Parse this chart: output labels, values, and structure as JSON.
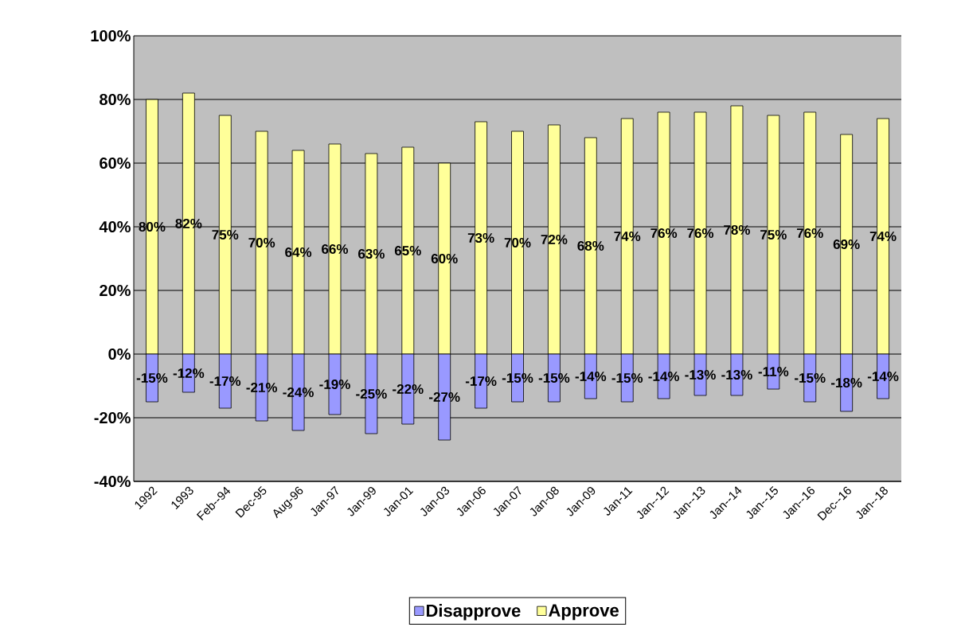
{
  "chart_data": {
    "type": "bar",
    "categories": [
      "1992",
      "1993",
      "Feb--94",
      "Dec-95",
      "Aug-96",
      "Jan-97",
      "Jan-99",
      "Jan-01",
      "Jan-03",
      "Jan-06",
      "Jan-07",
      "Jan-08",
      "Jan-09",
      "Jan-11",
      "Jan--12",
      "Jan--13",
      "Jan--14",
      "Jan--15",
      "Jan--16",
      "Dec--16",
      "Jan--18"
    ],
    "series": [
      {
        "name": "Disapprove",
        "color": "#9999ff",
        "values": [
          -15,
          -12,
          -17,
          -21,
          -24,
          -19,
          -25,
          -22,
          -27,
          -17,
          -15,
          -15,
          -14,
          -15,
          -14,
          -13,
          -13,
          -11,
          -15,
          -18,
          -14
        ],
        "value_labels": [
          "-15%",
          "-12%",
          "-17%",
          "-21%",
          "-24%",
          "-19%",
          "-25%",
          "-22%",
          "-27%",
          "-17%",
          "-15%",
          "-15%",
          "-14%",
          "-15%",
          "-14%",
          "-13%",
          "-13%",
          "-11%",
          "-15%",
          "-18%",
          "-14%"
        ]
      },
      {
        "name": "Approve",
        "color": "#ffff99",
        "values": [
          80,
          82,
          75,
          70,
          64,
          66,
          63,
          65,
          60,
          73,
          70,
          72,
          68,
          74,
          76,
          76,
          78,
          75,
          76,
          69,
          74
        ],
        "value_labels": [
          "80%",
          "82%",
          "75%",
          "70%",
          "64%",
          "66%",
          "63%",
          "65%",
          "60%",
          "73%",
          "70%",
          "72%",
          "68%",
          "74%",
          "76%",
          "76%",
          "78%",
          "75%",
          "76%",
          "69%",
          "74%"
        ]
      }
    ],
    "ylim": [
      -40,
      100
    ],
    "yticks": [
      {
        "value": -40,
        "label": "-40%"
      },
      {
        "value": -20,
        "label": "-20%"
      },
      {
        "value": 0,
        "label": "0%"
      },
      {
        "value": 20,
        "label": "20%"
      },
      {
        "value": 40,
        "label": "40%"
      },
      {
        "value": 60,
        "label": "60%"
      },
      {
        "value": 80,
        "label": "80%"
      },
      {
        "value": 100,
        "label": "100%"
      }
    ],
    "stacked": true,
    "grid": "y",
    "legend": "bottom"
  }
}
